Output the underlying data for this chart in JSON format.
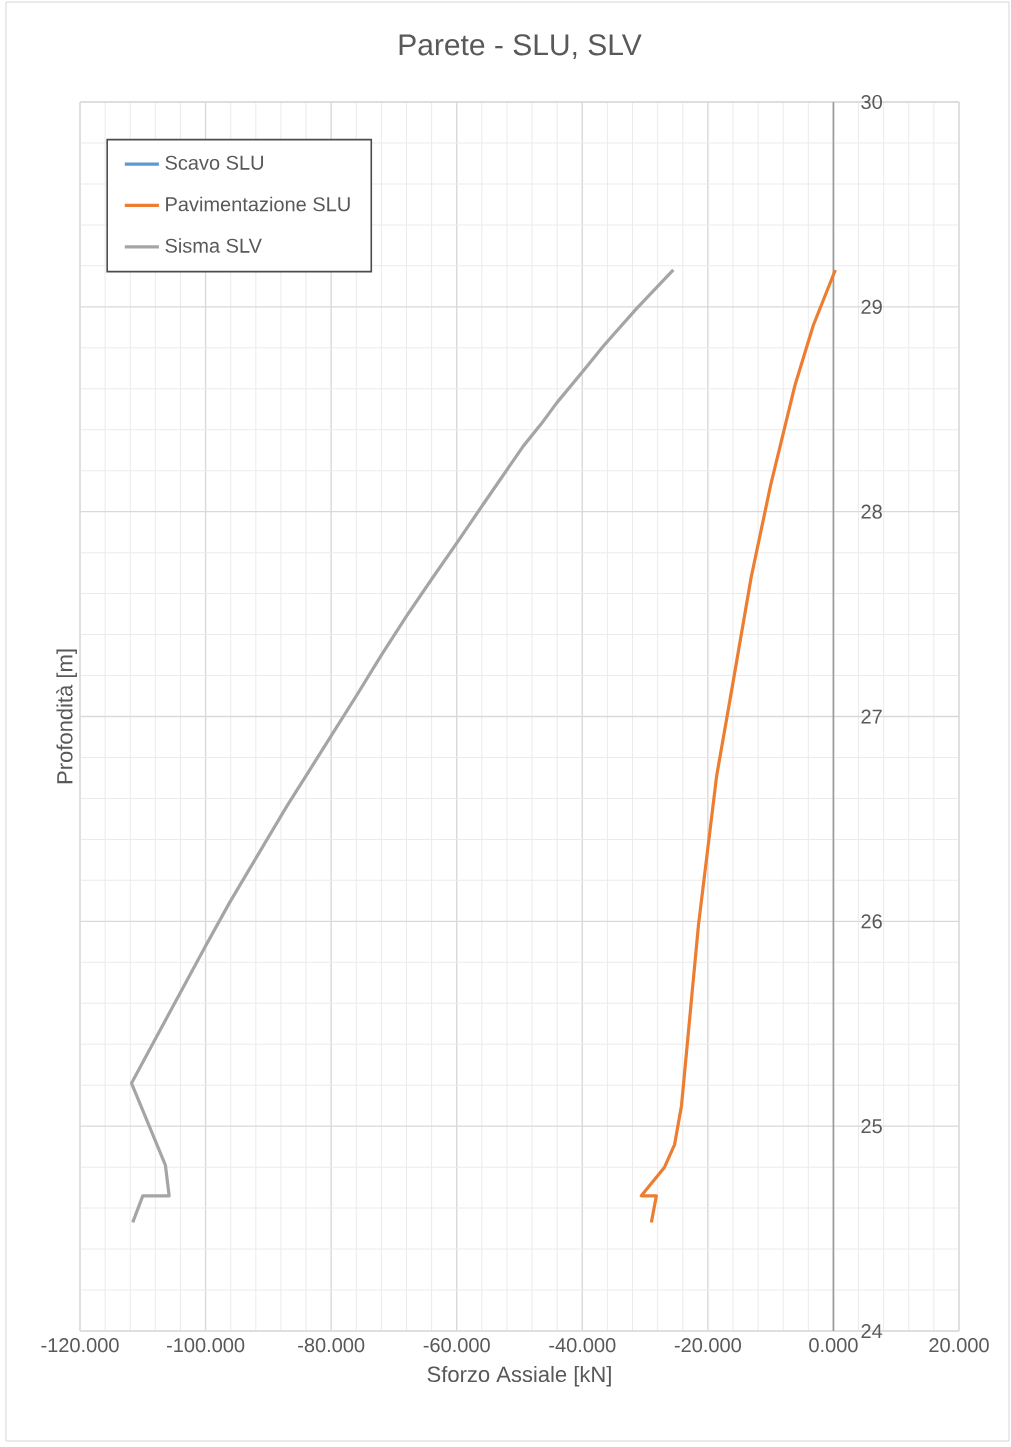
{
  "chart_data": {
    "type": "line",
    "title": "Parete - SLU, SLV",
    "xlabel": "Sforzo Assiale [kN]",
    "ylabel": "Profondità [m]",
    "xlim": [
      -120,
      20
    ],
    "ylim": [
      24,
      30
    ],
    "xticks": [
      {
        "value": -120,
        "label": "-120.000"
      },
      {
        "value": -100,
        "label": "-100.000"
      },
      {
        "value": -80,
        "label": "-80.000"
      },
      {
        "value": -60,
        "label": "-60.000"
      },
      {
        "value": -40,
        "label": "-40.000"
      },
      {
        "value": -20,
        "label": "-20.000"
      },
      {
        "value": 0,
        "label": "0.000"
      },
      {
        "value": 20,
        "label": "20.000"
      }
    ],
    "yticks": [
      24,
      25,
      26,
      27,
      28,
      29,
      30
    ],
    "grid": true,
    "legend": "top left",
    "series": [
      {
        "name": "Scavo SLU",
        "color": "#5b9bd5"
      },
      {
        "name": "Pavimentazione SLU",
        "color": "#ed7d31",
        "x": [
          0.3,
          -3.2,
          -6.1,
          -10.0,
          -13.1,
          -16.2,
          -18.6,
          -21.5,
          -24.2,
          -25.3,
          -26.9,
          -30.6,
          -28.2,
          -29.0
        ],
        "values": [
          29.18,
          28.91,
          28.62,
          28.13,
          27.68,
          27.13,
          26.71,
          25.98,
          25.1,
          24.91,
          24.8,
          24.66,
          24.66,
          24.53
        ]
      },
      {
        "name": "Sisma SLV",
        "color": "#a5a5a5",
        "x": [
          -25.5,
          -31.4,
          -36.6,
          -39.5,
          -44.1,
          -46.5,
          -49.4,
          -55.7,
          -59.7,
          -64.0,
          -68.0,
          -72.0,
          -75.8,
          -79.9,
          -83.6,
          -87.1,
          -93.3,
          -96.2,
          -100.0,
          -111.8,
          -109.1,
          -106.4,
          -105.8,
          -110.0,
          -111.6
        ],
        "values": [
          29.18,
          28.99,
          28.81,
          28.7,
          28.53,
          28.43,
          28.32,
          28.04,
          27.86,
          27.67,
          27.49,
          27.3,
          27.11,
          26.91,
          26.73,
          26.56,
          26.24,
          26.09,
          25.88,
          25.21,
          25.01,
          24.81,
          24.66,
          24.66,
          24.53
        ]
      }
    ]
  }
}
